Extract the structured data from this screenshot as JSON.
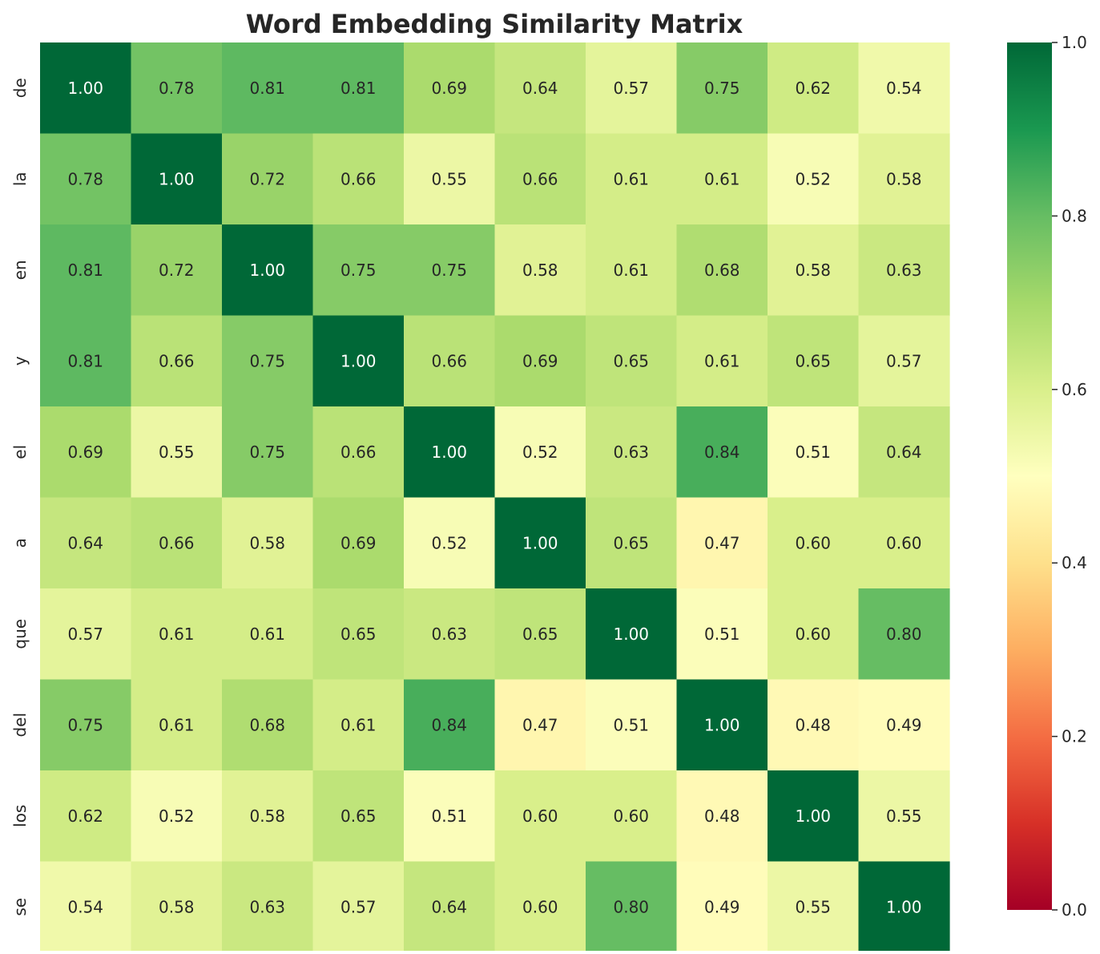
{
  "chart_data": {
    "type": "heatmap",
    "title": "Word Embedding Similarity Matrix",
    "xlabel": "",
    "ylabel": "",
    "x_labels": [
      "de",
      "la",
      "en",
      "y",
      "el",
      "a",
      "que",
      "del",
      "los",
      "se"
    ],
    "y_labels": [
      "de",
      "la",
      "en",
      "y",
      "el",
      "a",
      "que",
      "del",
      "los",
      "se"
    ],
    "values": [
      [
        1.0,
        0.78,
        0.81,
        0.81,
        0.69,
        0.64,
        0.57,
        0.75,
        0.62,
        0.54
      ],
      [
        0.78,
        1.0,
        0.72,
        0.66,
        0.55,
        0.66,
        0.61,
        0.61,
        0.52,
        0.58
      ],
      [
        0.81,
        0.72,
        1.0,
        0.75,
        0.75,
        0.58,
        0.61,
        0.68,
        0.58,
        0.63
      ],
      [
        0.81,
        0.66,
        0.75,
        1.0,
        0.66,
        0.69,
        0.65,
        0.61,
        0.65,
        0.57
      ],
      [
        0.69,
        0.55,
        0.75,
        0.66,
        1.0,
        0.52,
        0.63,
        0.84,
        0.51,
        0.64
      ],
      [
        0.64,
        0.66,
        0.58,
        0.69,
        0.52,
        1.0,
        0.65,
        0.47,
        0.6,
        0.6
      ],
      [
        0.57,
        0.61,
        0.61,
        0.65,
        0.63,
        0.65,
        1.0,
        0.51,
        0.6,
        0.8
      ],
      [
        0.75,
        0.61,
        0.68,
        0.61,
        0.84,
        0.47,
        0.51,
        1.0,
        0.48,
        0.49
      ],
      [
        0.62,
        0.52,
        0.58,
        0.65,
        0.51,
        0.6,
        0.6,
        0.48,
        1.0,
        0.55
      ],
      [
        0.54,
        0.58,
        0.63,
        0.57,
        0.64,
        0.6,
        0.8,
        0.49,
        0.55,
        1.0
      ]
    ],
    "value_format": "2 decimals",
    "colormap": "RdYlGn",
    "vmin": 0.0,
    "vmax": 1.0,
    "colorbar_ticks": [
      "0.0",
      "0.2",
      "0.4",
      "0.6",
      "0.8",
      "1.0"
    ],
    "grid": false,
    "legend": "colorbar-right",
    "colors": {
      "text_dark": "#262626",
      "text_light": "#ffffff",
      "label": "#262626"
    }
  }
}
